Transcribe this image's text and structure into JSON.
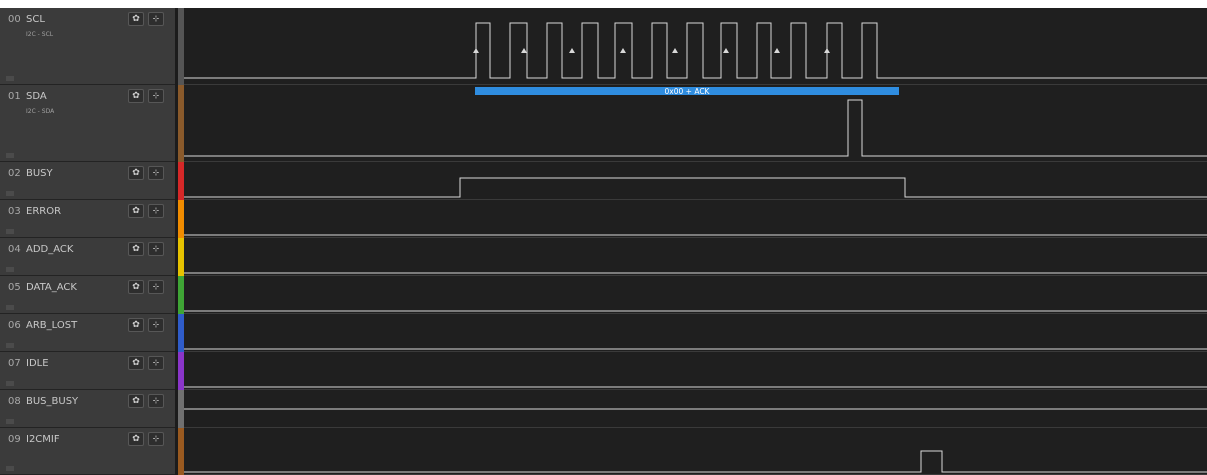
{
  "channels": [
    {
      "num": "00",
      "name": "SCL",
      "sub": "I2C - SCL",
      "color": "#555555"
    },
    {
      "num": "01",
      "name": "SDA",
      "sub": "I2C - SDA",
      "color": "#8a5a2b"
    },
    {
      "num": "02",
      "name": "BUSY",
      "sub": "",
      "color": "#d62828"
    },
    {
      "num": "03",
      "name": "ERROR",
      "sub": "",
      "color": "#f08c00"
    },
    {
      "num": "04",
      "name": "ADD_ACK",
      "sub": "",
      "color": "#e6c200"
    },
    {
      "num": "05",
      "name": "DATA_ACK",
      "sub": "",
      "color": "#3fa535"
    },
    {
      "num": "06",
      "name": "ARB_LOST",
      "sub": "",
      "color": "#2f5cc9"
    },
    {
      "num": "07",
      "name": "IDLE",
      "sub": "",
      "color": "#8a35c9"
    },
    {
      "num": "08",
      "name": "BUS_BUSY",
      "sub": "",
      "color": "#707070"
    },
    {
      "num": "09",
      "name": "I2CMIF",
      "sub": "",
      "color": "#9a5a20"
    }
  ],
  "decoder": {
    "label": "0x00 + ACK",
    "color": "#2f8de0"
  },
  "icons": {
    "gear": "gear-icon",
    "trigger": "trigger-edge-icon"
  },
  "button_glyphs": {
    "gear": "✿",
    "trigger": "⊹"
  }
}
